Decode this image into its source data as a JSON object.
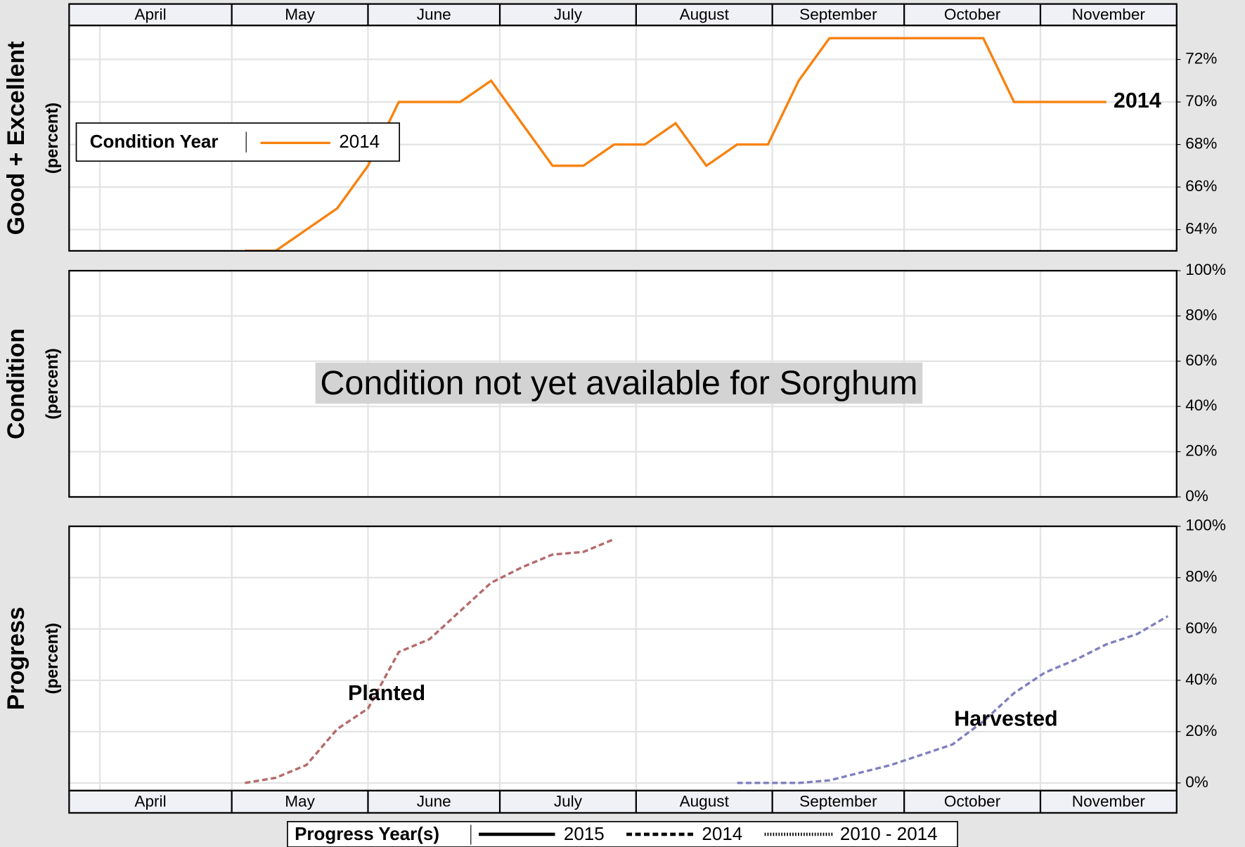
{
  "chart_data": [
    {
      "type": "line",
      "y_title": "Good + Excellent",
      "y_subtitle": "(percent)",
      "categories": [
        "April",
        "May",
        "June",
        "July",
        "August",
        "September",
        "October",
        "November"
      ],
      "category_edges": [
        0,
        37,
        68,
        98,
        129,
        160,
        190,
        221,
        252
      ],
      "xlim": [
        0,
        252
      ],
      "xgrid": [
        7,
        37,
        68,
        98,
        129,
        160,
        190,
        221
      ],
      "ylim": [
        63,
        73.6
      ],
      "yticks": [
        {
          "value": 64,
          "label": "64%"
        },
        {
          "value": 66,
          "label": "66%"
        },
        {
          "value": 68,
          "label": "68%"
        },
        {
          "value": 70,
          "label": "70%"
        },
        {
          "value": 72,
          "label": "72%"
        }
      ],
      "grid": true,
      "series": [
        {
          "name": "2014",
          "color": "#f7820f",
          "line_style": "solid",
          "x": [
            40,
            47,
            54,
            61,
            68,
            75,
            82,
            89,
            96,
            103,
            110,
            117,
            124,
            131,
            138,
            145,
            152,
            159,
            166,
            173,
            180,
            187,
            194,
            201,
            208,
            215,
            222,
            229,
            236
          ],
          "values": [
            63,
            63,
            64,
            65,
            67,
            70,
            70,
            70,
            71,
            69,
            67,
            67,
            68,
            68,
            69,
            67,
            68,
            68,
            71,
            73,
            73,
            73,
            73,
            73,
            73,
            70,
            70,
            70,
            70
          ]
        }
      ],
      "legend": {
        "title": "Condition Year",
        "position": "upper left"
      }
    },
    {
      "type": "line",
      "y_title": "Condition",
      "y_subtitle": "(percent)",
      "xlim": [
        0,
        252
      ],
      "xgrid": [
        7,
        37,
        68,
        98,
        129,
        160,
        190,
        221
      ],
      "ylim": [
        0,
        100
      ],
      "yticks": [
        {
          "value": 0,
          "label": "0%"
        },
        {
          "value": 20,
          "label": "20%"
        },
        {
          "value": 40,
          "label": "40%"
        },
        {
          "value": 60,
          "label": "60%"
        },
        {
          "value": 80,
          "label": "80%"
        },
        {
          "value": 100,
          "label": "100%"
        }
      ],
      "grid": true,
      "series": [],
      "annotation": "Condition not yet available for Sorghum",
      "annotation_color": "#0000ff"
    },
    {
      "type": "line",
      "y_title": "Progress",
      "y_subtitle": "(percent)",
      "categories": [
        "April",
        "May",
        "June",
        "July",
        "August",
        "September",
        "October",
        "November"
      ],
      "category_edges": [
        0,
        37,
        68,
        98,
        129,
        160,
        190,
        221,
        252
      ],
      "xlim": [
        0,
        252
      ],
      "xgrid": [
        7,
        37,
        68,
        98,
        129,
        160,
        190,
        221
      ],
      "ylim": [
        -3,
        100
      ],
      "yticks": [
        {
          "value": 0,
          "label": "0%"
        },
        {
          "value": 20,
          "label": "20%"
        },
        {
          "value": 40,
          "label": "40%"
        },
        {
          "value": 60,
          "label": "60%"
        },
        {
          "value": 80,
          "label": "80%"
        },
        {
          "value": 100,
          "label": "100%"
        }
      ],
      "grid": true,
      "series": [
        {
          "name": "Planted",
          "color": "#b56a6a",
          "line_style": "dashed",
          "x": [
            40,
            47,
            54,
            61,
            68,
            75,
            82,
            89,
            96,
            103,
            110,
            117,
            124
          ],
          "values": [
            0,
            2,
            7,
            21,
            29,
            51,
            56,
            67,
            78,
            84,
            89,
            90,
            95
          ]
        },
        {
          "name": "Harvested",
          "color": "#7f7fbf",
          "line_style": "dashed",
          "x": [
            152,
            159,
            166,
            173,
            180,
            187,
            194,
            201,
            208,
            215,
            222,
            229,
            236,
            243,
            250
          ],
          "values": [
            0,
            0,
            0,
            1,
            4,
            7,
            11,
            15,
            24,
            35,
            43,
            48,
            54,
            58,
            65
          ]
        }
      ],
      "legend": {
        "title": "Progress Year(s)",
        "position": "bottom",
        "entries": [
          {
            "label": "2015",
            "line_style": "solid"
          },
          {
            "label": "2014",
            "line_style": "dashed"
          },
          {
            "label": "2010 - 2014",
            "line_style": "dotted"
          }
        ]
      }
    }
  ]
}
